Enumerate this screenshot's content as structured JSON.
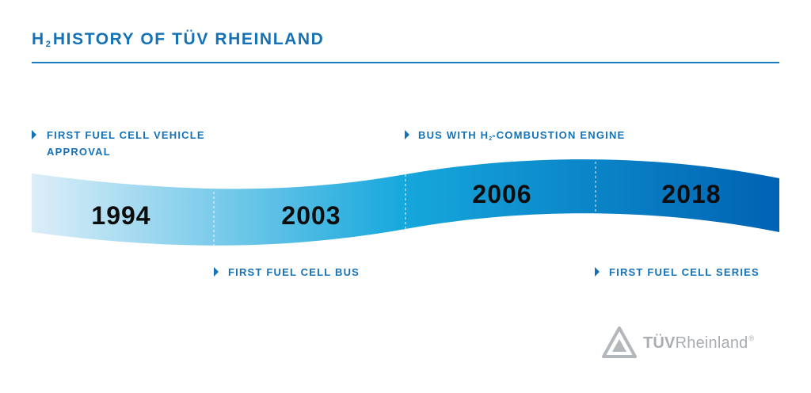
{
  "title": {
    "prefix": "H",
    "subscript": "2",
    "suffix": "HISTORY OF TÜV RHEINLAND"
  },
  "colors": {
    "accent": "#1572b6",
    "ribbon_start": "#dceef8",
    "ribbon_mid": "#16a7dc",
    "ribbon_end": "#0062b3",
    "year_text": "#0d0d0d",
    "logo_grey": "#a9adb1"
  },
  "timeline": {
    "years": [
      "1994",
      "2003",
      "2006",
      "2018"
    ],
    "events": [
      {
        "year": "1994",
        "position": "above",
        "line1": "FIRST FUEL CELL VEHICLE",
        "line2": "APPROVAL"
      },
      {
        "year": "2003",
        "position": "below",
        "line1": "FIRST FUEL CELL BUS"
      },
      {
        "year": "2006",
        "position": "above",
        "line1_pre": "BUS WITH H",
        "line1_sub": "2",
        "line1_post": "-COMBUSTION ENGINE"
      },
      {
        "year": "2018",
        "position": "below",
        "line1": "FIRST FUEL CELL SERIES"
      }
    ]
  },
  "logo": {
    "bold": "TÜV",
    "regular": "Rheinland",
    "mark": "®",
    "icon": "tuv-triangle-icon"
  }
}
